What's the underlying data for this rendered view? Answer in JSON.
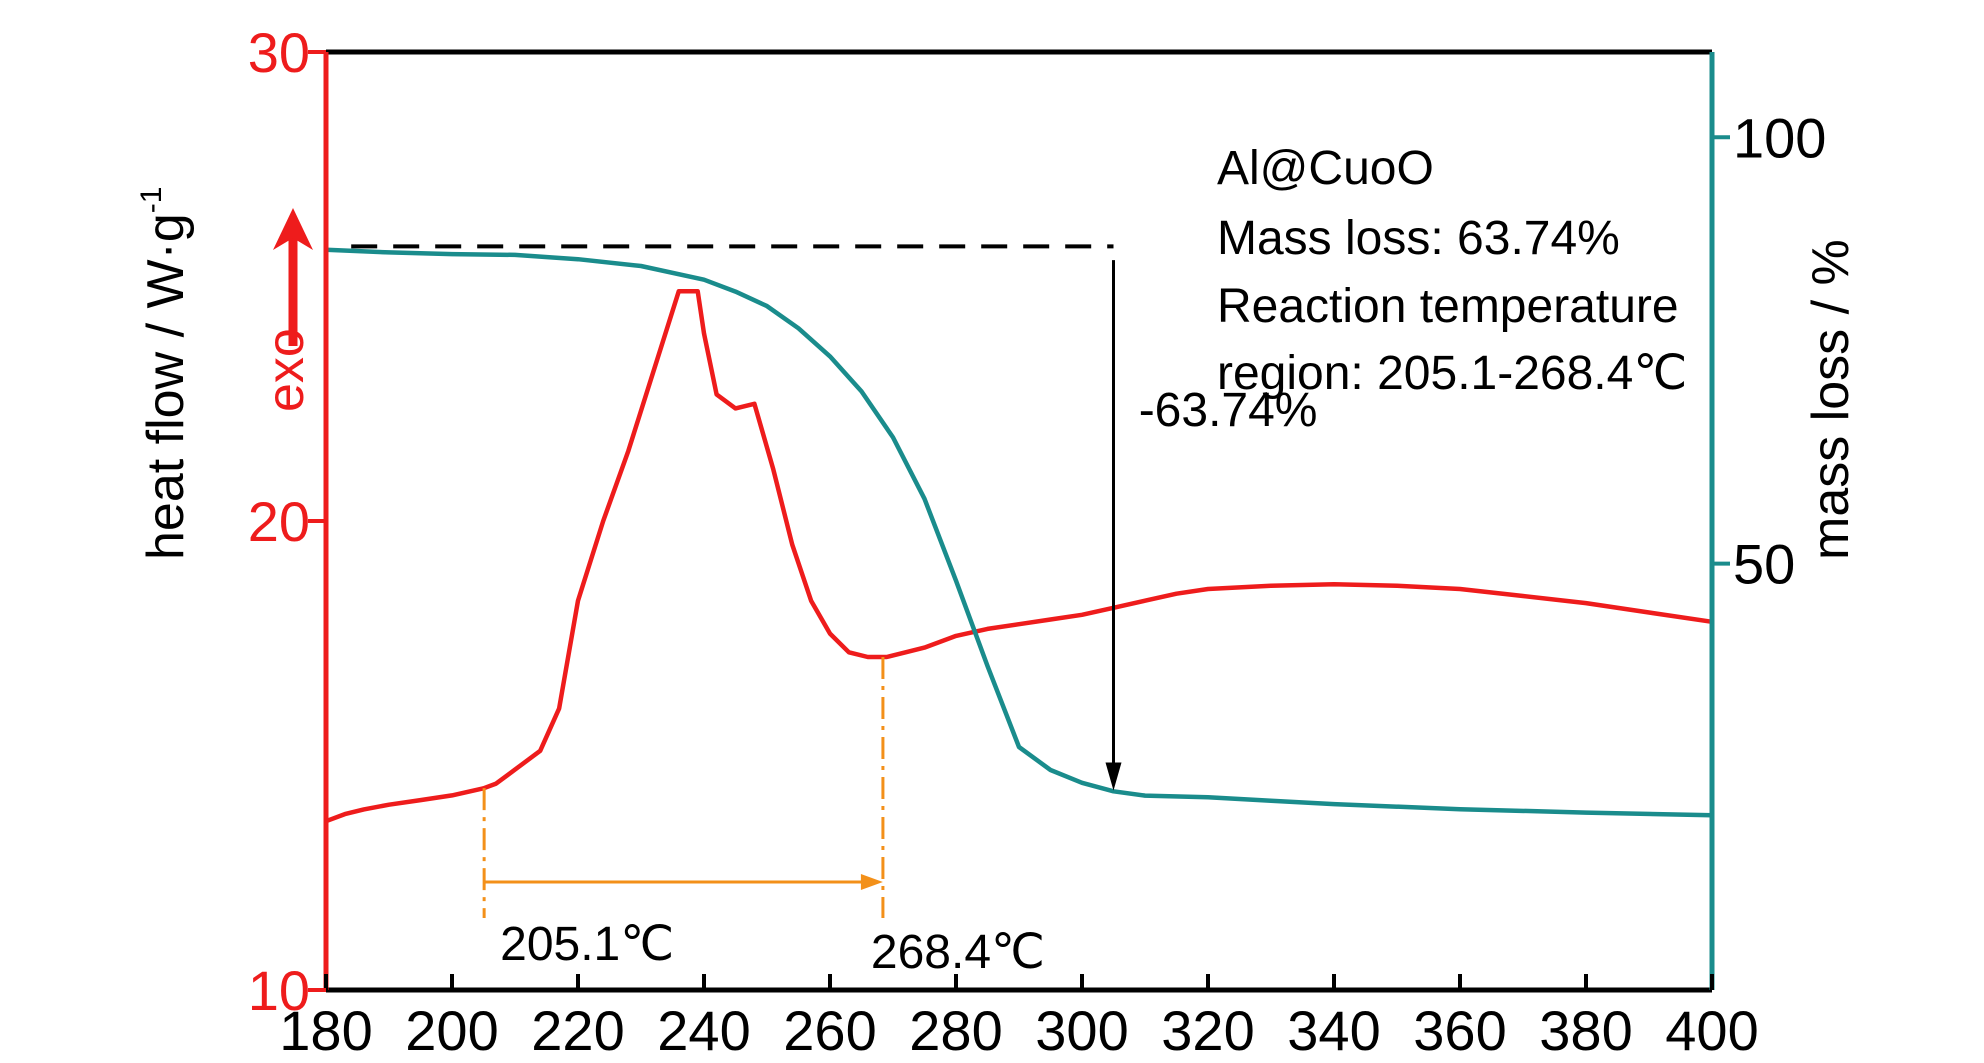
{
  "colors": {
    "heat_flow": "#ee1c1c",
    "mass": "#1a8c8c",
    "axis_frame": "#000000",
    "guide": "#f39019",
    "annotation": "#000000"
  },
  "chart_data": {
    "type": "line",
    "x_ticks": [
      "180",
      "200",
      "220",
      "240",
      "260",
      "280",
      "300",
      "320",
      "340",
      "360",
      "380",
      "400"
    ],
    "xlim": [
      180,
      400
    ],
    "left_axis": {
      "label": "heat flow / W·g",
      "label_superscript": "-1",
      "exo_label": "exo",
      "ylim": [
        10,
        30
      ],
      "ticks": [
        "10",
        "20",
        "30"
      ]
    },
    "right_axis": {
      "label": "mass loss / %",
      "ticks": [
        "50",
        "100"
      ],
      "tick_values": [
        50,
        100
      ],
      "ylim": [
        0,
        110
      ]
    },
    "series": [
      {
        "id": "heat_flow",
        "axis": "left",
        "x": [
          180,
          183,
          186,
          190,
          195,
          200,
          205,
          207,
          210,
          214,
          217,
          220,
          224,
          228,
          232,
          236,
          239,
          240,
          242,
          245,
          248,
          251,
          254,
          257,
          260,
          263,
          266,
          269,
          272,
          275,
          280,
          285,
          290,
          295,
          300,
          305,
          310,
          315,
          320,
          330,
          340,
          350,
          360,
          370,
          380,
          390,
          400
        ],
        "y": [
          13.6,
          13.75,
          13.85,
          13.95,
          14.05,
          14.15,
          14.3,
          14.4,
          14.7,
          15.1,
          16.0,
          18.3,
          20.0,
          21.5,
          23.2,
          24.9,
          24.9,
          24.0,
          22.7,
          22.4,
          22.5,
          21.1,
          19.5,
          18.3,
          17.6,
          17.2,
          17.1,
          17.1,
          17.2,
          17.3,
          17.55,
          17.7,
          17.8,
          17.9,
          18.0,
          18.15,
          18.3,
          18.45,
          18.55,
          18.62,
          18.65,
          18.62,
          18.55,
          18.4,
          18.25,
          18.05,
          17.85
        ]
      },
      {
        "id": "mass",
        "axis": "right",
        "x": [
          180,
          190,
          200,
          210,
          220,
          230,
          240,
          245,
          250,
          255,
          260,
          265,
          270,
          275,
          280,
          285,
          290,
          295,
          300,
          305,
          310,
          320,
          330,
          340,
          360,
          380,
          400
        ],
        "y": [
          86.8,
          86.5,
          86.3,
          86.2,
          85.7,
          84.9,
          83.3,
          81.9,
          80.2,
          77.6,
          74.3,
          70.2,
          64.8,
          57.6,
          48.0,
          38.0,
          28.5,
          25.8,
          24.3,
          23.3,
          22.8,
          22.6,
          22.2,
          21.8,
          21.2,
          20.8,
          20.5
        ]
      }
    ],
    "reference_line": {
      "axis": "right",
      "y": 87.2,
      "x_range": [
        184,
        305
      ]
    },
    "mass_loss_arrow": {
      "x": 305,
      "from_y": 85.6,
      "to_y": 23.4,
      "label": "-63.74%",
      "label_x": 309,
      "label_y": 68
    },
    "onset_marker": {
      "x": 205.1,
      "label": "205.1℃"
    },
    "end_marker": {
      "x": 268.4,
      "label": "268.4℃"
    },
    "legend_text": [
      "Al@CuoO",
      "Mass loss: 63.74%",
      "Reaction temperature",
      "region: 205.1-268.4℃"
    ]
  }
}
